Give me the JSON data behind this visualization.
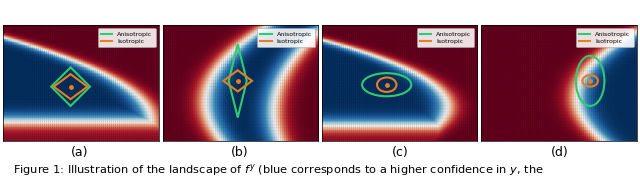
{
  "figure_width": 6.4,
  "figure_height": 1.85,
  "dpi": 100,
  "subcaptions": [
    "(a)",
    "(b)",
    "(c)",
    "(d)"
  ],
  "caption": "Figure 1: Illustration of the landscape of $f^y$ (blue corresponds to a higher confidence in $y$, the",
  "legend_labels": [
    "Anisotropic",
    "Isotropic"
  ],
  "legend_colors_anisotropic": "#2ecc71",
  "legend_colors_isotropic": "#e67e22",
  "caption_fontsize": 8.2,
  "subcaption_fontsize": 9
}
